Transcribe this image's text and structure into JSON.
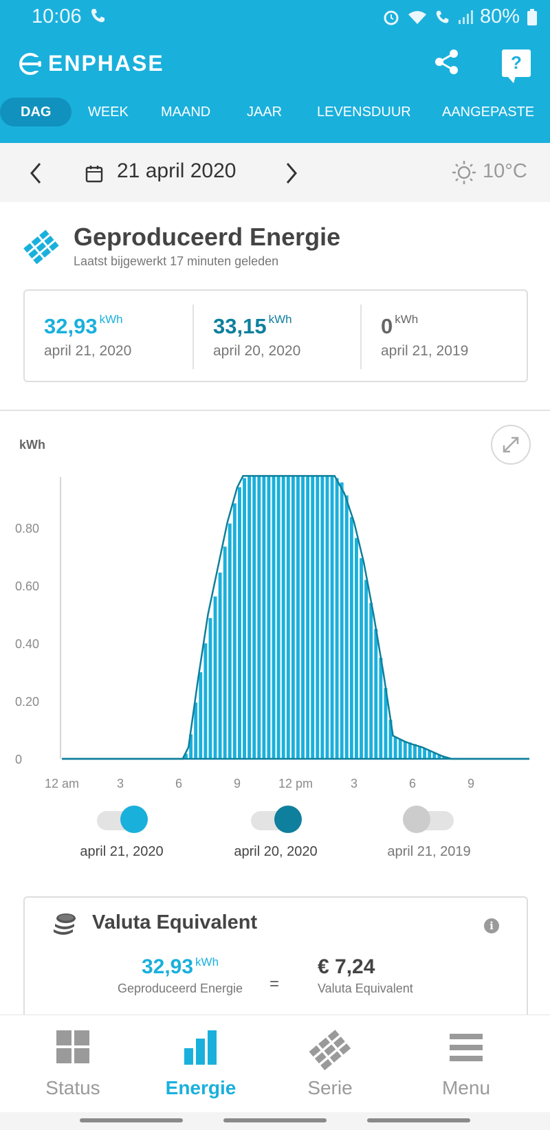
{
  "statusbar": {
    "time": "10:06",
    "battery": "80%"
  },
  "header": {
    "brand": "ENPHASE",
    "icons": [
      "share-icon",
      "help-icon"
    ],
    "help_label": "?"
  },
  "tabs": [
    {
      "label": "DAG",
      "active": true
    },
    {
      "label": "WEEK",
      "active": false
    },
    {
      "label": "MAAND",
      "active": false
    },
    {
      "label": "JAAR",
      "active": false
    },
    {
      "label": "LEVENSDUUR",
      "active": false
    },
    {
      "label": "AANGEPASTE",
      "active": false
    }
  ],
  "datebar": {
    "date": "21 april 2020",
    "temperature": "10°C"
  },
  "production": {
    "title": "Geproduceerd Energie",
    "subtitle": "Laatst bijgewerkt 17 minuten geleden",
    "stats": [
      {
        "value": "32,93",
        "unit": "kWh",
        "date": "april 21, 2020",
        "color": "#1ab0dc"
      },
      {
        "value": "33,15",
        "unit": "kWh",
        "date": "april 20, 2020",
        "color": "#0e7f9c"
      },
      {
        "value": "0",
        "unit": "kWh",
        "date": "april 21, 2019",
        "color": "#444444"
      }
    ]
  },
  "chart_data": {
    "type": "area",
    "ylabel": "kWh",
    "y_ticks": [
      "0",
      "0.20",
      "0.40",
      "0.60",
      "0.80"
    ],
    "x_ticks": [
      "12 am",
      "3",
      "6",
      "9",
      "12 pm",
      "3",
      "6",
      "9"
    ],
    "ylim": [
      0,
      1.0
    ],
    "xlim": [
      0,
      24
    ],
    "grid": false,
    "series": [
      {
        "name": "april 21, 2020",
        "color": "#1ab0dc",
        "style": "filled-bars",
        "x": [
          0,
          6.2,
          6.5,
          7,
          7.5,
          8,
          8.5,
          9,
          9.3,
          9.6,
          10,
          11,
          12,
          13,
          14,
          14.5,
          15,
          15.5,
          16,
          16.5,
          17,
          17.3,
          17.6,
          18,
          18.5,
          19,
          19.5,
          20,
          24
        ],
        "y": [
          0,
          0,
          0.03,
          0.25,
          0.45,
          0.6,
          0.78,
          0.92,
          0.97,
          0.98,
          0.98,
          0.98,
          0.98,
          0.98,
          0.98,
          0.95,
          0.8,
          0.66,
          0.5,
          0.3,
          0.08,
          0.07,
          0.06,
          0.055,
          0.04,
          0.025,
          0.01,
          0,
          0
        ]
      },
      {
        "name": "april 20, 2020",
        "color": "#0e7f9c",
        "style": "line",
        "x": [
          0,
          6.2,
          6.5,
          7,
          7.5,
          8,
          8.5,
          9,
          9.3,
          9.6,
          10,
          11,
          12,
          13,
          14,
          14.5,
          15,
          15.5,
          16,
          16.5,
          17,
          17.3,
          17.6,
          18,
          18.5,
          19,
          19.5,
          20,
          24
        ],
        "y": [
          0,
          0,
          0.04,
          0.28,
          0.5,
          0.66,
          0.82,
          0.94,
          0.98,
          0.98,
          0.98,
          0.98,
          0.98,
          0.98,
          0.98,
          0.92,
          0.82,
          0.68,
          0.5,
          0.3,
          0.08,
          0.07,
          0.06,
          0.05,
          0.04,
          0.025,
          0.01,
          0,
          0
        ]
      }
    ]
  },
  "legend": [
    {
      "label": "april 21, 2020",
      "color": "#1ab0dc",
      "on": true
    },
    {
      "label": "april 20, 2020",
      "color": "#0e7f9c",
      "on": true
    },
    {
      "label": "april 21, 2019",
      "color": "#cccccc",
      "on": false
    }
  ],
  "valuta": {
    "title": "Valuta Equivalent",
    "info": "i",
    "energy_value": "32,93",
    "energy_unit": "kWh",
    "energy_label": "Geproduceerd Energie",
    "equals": "=",
    "money_value": "€ 7,24",
    "money_label": "Valuta Equivalent"
  },
  "bottomnav": [
    {
      "label": "Status",
      "icon": "grid-icon",
      "active": false
    },
    {
      "label": "Energie",
      "icon": "bar-chart-icon",
      "active": true
    },
    {
      "label": "Serie",
      "icon": "solar-panel-icon",
      "active": false
    },
    {
      "label": "Menu",
      "icon": "hamburger-menu-icon",
      "active": false
    }
  ]
}
